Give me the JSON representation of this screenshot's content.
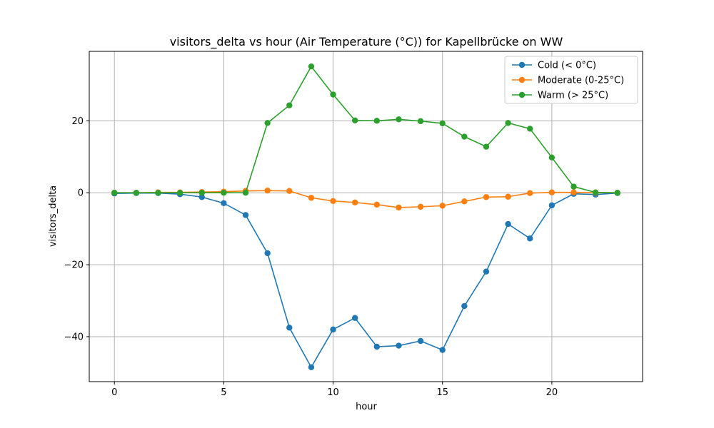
{
  "chart_data": {
    "type": "line",
    "title": "visitors_delta vs hour (Air Temperature (°C)) for Kapellbrücke on WW",
    "xlabel": "hour",
    "ylabel": "visitors_delta",
    "xlim": [
      -1.15,
      24.15
    ],
    "ylim": [
      -52.5,
      39.3
    ],
    "xticks": [
      0,
      5,
      10,
      15,
      20
    ],
    "yticks": [
      -40,
      -20,
      0,
      20
    ],
    "grid": true,
    "legend_position": "top-right",
    "x": [
      0,
      1,
      2,
      3,
      4,
      5,
      6,
      7,
      8,
      9,
      10,
      11,
      12,
      13,
      14,
      15,
      16,
      17,
      18,
      19,
      20,
      21,
      22,
      23
    ],
    "series": [
      {
        "name": "Cold (< 0°C)",
        "color": "#1f77b4",
        "values": [
          -0.2,
          -0.1,
          -0.1,
          -0.4,
          -1.2,
          -2.9,
          -6.2,
          -16.8,
          -37.5,
          -48.5,
          -38.0,
          -34.8,
          -42.8,
          -42.5,
          -41.2,
          -43.7,
          -31.5,
          -21.9,
          -8.7,
          -12.7,
          -3.5,
          -0.3,
          -0.5,
          -0.1
        ]
      },
      {
        "name": "Moderate (0-25°C)",
        "color": "#ff7f0e",
        "values": [
          0.0,
          0.0,
          0.1,
          0.1,
          0.2,
          0.3,
          0.5,
          0.6,
          0.5,
          -1.4,
          -2.3,
          -2.7,
          -3.3,
          -4.1,
          -3.9,
          -3.6,
          -2.4,
          -1.2,
          -1.1,
          -0.1,
          0.1,
          0.1,
          0.0,
          0.0
        ]
      },
      {
        "name": "Warm (> 25°C)",
        "color": "#2ca02c",
        "values": [
          0.0,
          0.0,
          0.0,
          0.0,
          0.0,
          0.0,
          0.0,
          19.4,
          24.3,
          35.1,
          27.3,
          20.1,
          20.0,
          20.4,
          19.9,
          19.3,
          15.6,
          12.8,
          19.4,
          17.8,
          9.8,
          1.7,
          0.1,
          0.0
        ]
      }
    ]
  }
}
